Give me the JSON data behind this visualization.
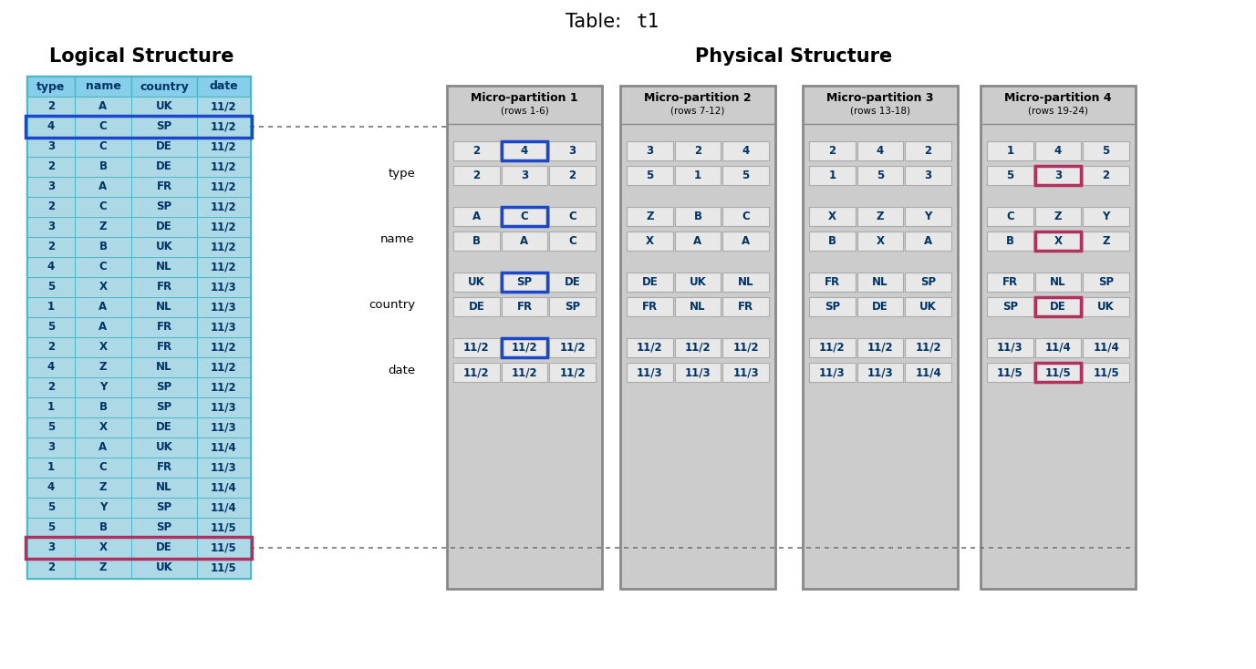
{
  "title_normal": "Table: ",
  "title_mono": "t1",
  "logical_title": "Logical Structure",
  "physical_title": "Physical Structure",
  "logical_headers": [
    "type",
    "name",
    "country",
    "date"
  ],
  "logical_rows": [
    [
      "2",
      "A",
      "UK",
      "11/2"
    ],
    [
      "4",
      "C",
      "SP",
      "11/2"
    ],
    [
      "3",
      "C",
      "DE",
      "11/2"
    ],
    [
      "2",
      "B",
      "DE",
      "11/2"
    ],
    [
      "3",
      "A",
      "FR",
      "11/2"
    ],
    [
      "2",
      "C",
      "SP",
      "11/2"
    ],
    [
      "3",
      "Z",
      "DE",
      "11/2"
    ],
    [
      "2",
      "B",
      "UK",
      "11/2"
    ],
    [
      "4",
      "C",
      "NL",
      "11/2"
    ],
    [
      "5",
      "X",
      "FR",
      "11/3"
    ],
    [
      "1",
      "A",
      "NL",
      "11/3"
    ],
    [
      "5",
      "A",
      "FR",
      "11/3"
    ],
    [
      "2",
      "X",
      "FR",
      "11/2"
    ],
    [
      "4",
      "Z",
      "NL",
      "11/2"
    ],
    [
      "2",
      "Y",
      "SP",
      "11/2"
    ],
    [
      "1",
      "B",
      "SP",
      "11/3"
    ],
    [
      "5",
      "X",
      "DE",
      "11/3"
    ],
    [
      "3",
      "A",
      "UK",
      "11/4"
    ],
    [
      "1",
      "C",
      "FR",
      "11/3"
    ],
    [
      "4",
      "Z",
      "NL",
      "11/4"
    ],
    [
      "5",
      "Y",
      "SP",
      "11/4"
    ],
    [
      "5",
      "B",
      "SP",
      "11/5"
    ],
    [
      "3",
      "X",
      "DE",
      "11/5"
    ],
    [
      "2",
      "Z",
      "UK",
      "11/5"
    ]
  ],
  "blue_highlight_row": 1,
  "pink_highlight_row": 22,
  "partitions": [
    {
      "title": "Micro-partition 1",
      "subtitle": "(rows 1-6)",
      "type": [
        [
          "2",
          "4",
          "3"
        ],
        [
          "2",
          "3",
          "2"
        ]
      ],
      "name": [
        [
          "A",
          "C",
          "C"
        ],
        [
          "B",
          "A",
          "C"
        ]
      ],
      "country": [
        [
          "UK",
          "SP",
          "DE"
        ],
        [
          "DE",
          "FR",
          "SP"
        ]
      ],
      "date": [
        [
          "11/2",
          "11/2",
          "11/2"
        ],
        [
          "11/2",
          "11/2",
          "11/2"
        ]
      ],
      "blue_cells": {
        "type": [
          [
            0,
            1
          ]
        ],
        "name": [
          [
            0,
            1
          ]
        ],
        "country": [
          [
            0,
            1
          ]
        ],
        "date": [
          [
            0,
            1
          ]
        ]
      },
      "pink_cells": {}
    },
    {
      "title": "Micro-partition 2",
      "subtitle": "(rows 7-12)",
      "type": [
        [
          "3",
          "2",
          "4"
        ],
        [
          "5",
          "1",
          "5"
        ]
      ],
      "name": [
        [
          "Z",
          "B",
          "C"
        ],
        [
          "X",
          "A",
          "A"
        ]
      ],
      "country": [
        [
          "DE",
          "UK",
          "NL"
        ],
        [
          "FR",
          "NL",
          "FR"
        ]
      ],
      "date": [
        [
          "11/2",
          "11/2",
          "11/2"
        ],
        [
          "11/3",
          "11/3",
          "11/3"
        ]
      ],
      "blue_cells": {},
      "pink_cells": {}
    },
    {
      "title": "Micro-partition 3",
      "subtitle": "(rows 13-18)",
      "type": [
        [
          "2",
          "4",
          "2"
        ],
        [
          "1",
          "5",
          "3"
        ]
      ],
      "name": [
        [
          "X",
          "Z",
          "Y"
        ],
        [
          "B",
          "X",
          "A"
        ]
      ],
      "country": [
        [
          "FR",
          "NL",
          "SP"
        ],
        [
          "SP",
          "DE",
          "UK"
        ]
      ],
      "date": [
        [
          "11/2",
          "11/2",
          "11/2"
        ],
        [
          "11/3",
          "11/3",
          "11/4"
        ]
      ],
      "blue_cells": {},
      "pink_cells": {}
    },
    {
      "title": "Micro-partition 4",
      "subtitle": "(rows 19-24)",
      "type": [
        [
          "1",
          "4",
          "5"
        ],
        [
          "5",
          "3",
          "2"
        ]
      ],
      "name": [
        [
          "C",
          "Z",
          "Y"
        ],
        [
          "B",
          "X",
          "Z"
        ]
      ],
      "country": [
        [
          "FR",
          "NL",
          "SP"
        ],
        [
          "SP",
          "DE",
          "UK"
        ]
      ],
      "date": [
        [
          "11/3",
          "11/4",
          "11/4"
        ],
        [
          "11/5",
          "11/5",
          "11/5"
        ]
      ],
      "blue_cells": {},
      "pink_cells": {
        "type": [
          [
            1,
            1
          ]
        ],
        "name": [
          [
            1,
            1
          ]
        ],
        "country": [
          [
            1,
            1
          ]
        ],
        "date": [
          [
            1,
            1
          ]
        ]
      }
    }
  ]
}
